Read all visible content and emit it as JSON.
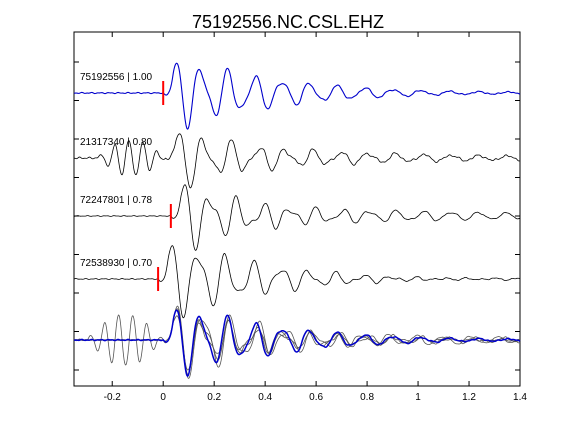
{
  "chart_data": {
    "type": "line",
    "title": "75192556.NC.CSL.EHZ",
    "xlabel": "",
    "ylabel": "",
    "xlim": [
      -0.35,
      1.4
    ],
    "x_ticks": [
      -0.2,
      0,
      0.2,
      0.4,
      0.6,
      0.8,
      1.0,
      1.2,
      1.4
    ],
    "x_tick_labels": [
      "-0.2",
      "0",
      "0.2",
      "0.4",
      "0.6",
      "0.8",
      "1",
      "1.2",
      "1.4"
    ],
    "grid": false,
    "colors": {
      "reference": "#0000cc",
      "trace": "#000000",
      "overlay": "#555555",
      "pick": "#ff0000"
    },
    "traces": [
      {
        "label": "75192556 | 1.00",
        "event_id": "75192556",
        "correlation": 1.0,
        "pick_time": 0.0,
        "color": "#0000cc"
      },
      {
        "label": "21317340 | 0.80",
        "event_id": "21317340",
        "correlation": 0.8,
        "pick_time": null,
        "color": "#000000"
      },
      {
        "label": "72247801 | 0.78",
        "event_id": "72247801",
        "correlation": 0.78,
        "pick_time": 0.03,
        "color": "#000000"
      },
      {
        "label": "72538930 | 0.70",
        "event_id": "72538930",
        "correlation": 0.7,
        "pick_time": -0.02,
        "color": "#000000"
      }
    ],
    "overlay": {
      "label": "",
      "description": "stack"
    }
  }
}
